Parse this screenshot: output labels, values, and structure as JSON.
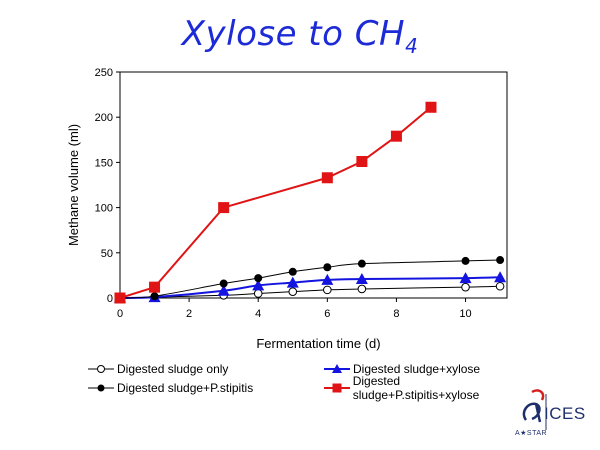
{
  "slide": {
    "title_main": "Xylose to CH",
    "title_sub": "4"
  },
  "logo": {
    "letters": "ICES",
    "sub": "A★STAR"
  },
  "colors": {
    "title": "#1c2bd6",
    "red": "#e01414",
    "blue": "#1414e0",
    "black": "#000000"
  },
  "chart_data": {
    "type": "line",
    "title": "",
    "xlabel": "Fermentation time (d)",
    "ylabel": "Methane  volume (ml)",
    "xlim": [
      0,
      11.2
    ],
    "ylim": [
      0,
      250
    ],
    "xticks": [
      0,
      2,
      4,
      6,
      8,
      10
    ],
    "yticks": [
      0,
      50,
      100,
      150,
      200,
      250
    ],
    "grid": false,
    "legend_position": "bottom",
    "series": [
      {
        "name": "Digested sludge only",
        "marker": "circle-open",
        "color": "#000000",
        "x": [
          0,
          1,
          3,
          4,
          5,
          6,
          7,
          10,
          11
        ],
        "y": [
          0,
          1,
          3,
          5,
          7,
          9,
          10,
          12,
          13
        ]
      },
      {
        "name": "Digested sludge+xylose",
        "marker": "triangle",
        "color": "#1414e0",
        "x": [
          0,
          1,
          3,
          4,
          5,
          6,
          7,
          10,
          11
        ],
        "y": [
          0,
          1,
          8,
          14,
          17,
          20,
          21,
          22,
          23
        ]
      },
      {
        "name": "Digested sludge+P.stipitis",
        "marker": "circle-filled",
        "color": "#000000",
        "x": [
          0,
          1,
          3,
          4,
          5,
          6,
          7,
          10,
          11
        ],
        "y": [
          0,
          2,
          16,
          22,
          29,
          34,
          38,
          41,
          42
        ]
      },
      {
        "name": "Digested sludge+P.stipitis+xylose",
        "marker": "square",
        "color": "#e01414",
        "x": [
          0,
          1,
          3,
          6,
          7,
          8,
          9
        ],
        "y": [
          0,
          12,
          100,
          133,
          151,
          179,
          211
        ]
      }
    ]
  }
}
